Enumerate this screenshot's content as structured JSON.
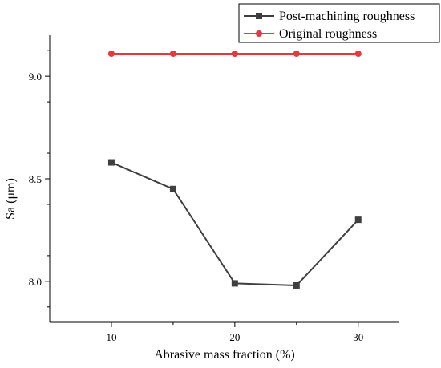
{
  "chart_data": {
    "type": "line",
    "xlabel": "Abrasive mass fraction (%)",
    "ylabel": "Sa (μm)",
    "xlim": [
      5,
      30
    ],
    "ylim": [
      7.8,
      9.2
    ],
    "x_ticks": [
      10,
      20,
      30
    ],
    "x_tick_labels": [
      "10",
      "20",
      "30"
    ],
    "y_ticks": [
      8.0,
      8.5,
      9.0
    ],
    "y_tick_labels": [
      "8.0",
      "8.5",
      "9.0"
    ],
    "grid": false,
    "legend_position": "top-right",
    "x": [
      10,
      15,
      20,
      25,
      30
    ],
    "series": [
      {
        "name": "Post-machining roughness",
        "values": [
          8.58,
          8.45,
          7.99,
          7.98,
          8.3
        ],
        "color": "#3f3f3f",
        "marker": "square"
      },
      {
        "name": "Original roughness",
        "values": [
          9.11,
          9.11,
          9.11,
          9.11,
          9.11
        ],
        "color": "#e8383d",
        "marker": "circle"
      }
    ]
  }
}
